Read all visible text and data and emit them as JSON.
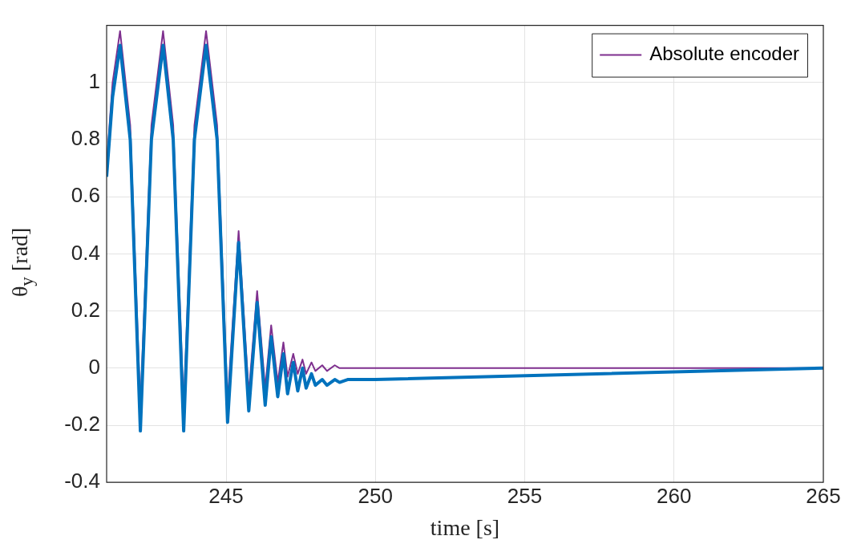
{
  "chart_data": {
    "type": "line",
    "xlabel": "time [s]",
    "ylabel": "θ$_{y}$ [rad]",
    "xlim": [
      241,
      265
    ],
    "ylim": [
      -0.4,
      1.2
    ],
    "xticks": [
      245,
      250,
      255,
      260,
      265
    ],
    "yticks": [
      -0.4,
      -0.2,
      0,
      0.2,
      0.4,
      0.6,
      0.8,
      1
    ],
    "grid": true,
    "legend": "top right",
    "marker": "none",
    "line_style": "solid",
    "series": [
      {
        "color": "#0072bd",
        "x": [
          241,
          241.2,
          241.45,
          241.79,
          242.13,
          242.5,
          242.89,
          243.23,
          243.58,
          243.94,
          244.33,
          244.7,
          245.05,
          245.42,
          245.76,
          246.04,
          246.31,
          246.51,
          246.73,
          246.92,
          247.06,
          247.25,
          247.4,
          247.56,
          247.68,
          247.86,
          247.99,
          248.22,
          248.38,
          248.64,
          248.8,
          249.07,
          249.42,
          250,
          265
        ],
        "values": [
          0.67,
          0.95,
          1.13,
          0.8,
          -0.22,
          0.8,
          1.13,
          0.8,
          -0.22,
          0.8,
          1.13,
          0.8,
          -0.19,
          0.44,
          -0.15,
          0.23,
          -0.13,
          0.11,
          -0.1,
          0.05,
          -0.09,
          0.02,
          -0.08,
          0,
          -0.07,
          -0.02,
          -0.06,
          -0.04,
          -0.06,
          -0.04,
          -0.05,
          -0.04,
          -0.04,
          -0.04,
          0
        ]
      },
      {
        "name": "Absolute encoder",
        "color": "#7e2f8e",
        "x": [
          241,
          241.2,
          241.45,
          241.79,
          242.13,
          242.5,
          242.89,
          243.23,
          243.58,
          243.94,
          244.33,
          244.7,
          245.05,
          245.42,
          245.76,
          246.04,
          246.31,
          246.51,
          246.73,
          246.92,
          247.06,
          247.25,
          247.4,
          247.56,
          247.68,
          247.86,
          247.99,
          248.22,
          248.38,
          248.64,
          248.8,
          249.07,
          249.42,
          265
        ],
        "values": [
          0.71,
          1,
          1.18,
          0.85,
          -0.14,
          0.85,
          1.18,
          0.85,
          -0.14,
          0.85,
          1.18,
          0.85,
          -0.12,
          0.48,
          -0.09,
          0.27,
          -0.07,
          0.15,
          -0.05,
          0.09,
          -0.03,
          0.05,
          -0.02,
          0.03,
          -0.02,
          0.02,
          -0.01,
          0.01,
          -0.01,
          0.01,
          0,
          0,
          0,
          0
        ]
      }
    ]
  }
}
